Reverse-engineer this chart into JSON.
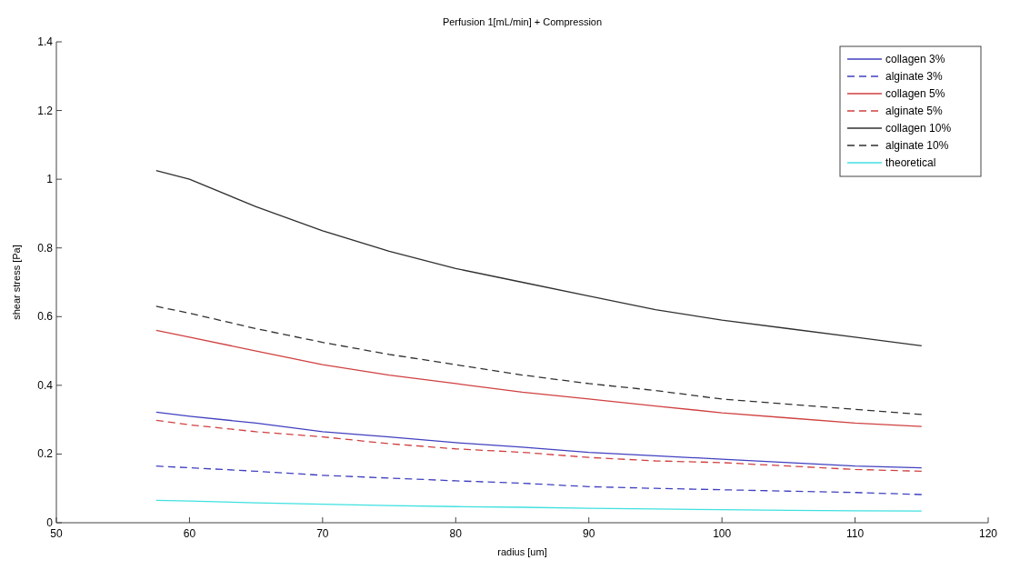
{
  "chart_data": {
    "type": "line",
    "title": "Perfusion 1[mL/min] + Compression",
    "xlabel": "radius [um]",
    "ylabel": "shear stress [Pa]",
    "x": [
      57.5,
      60,
      65,
      70,
      75,
      80,
      85,
      90,
      95,
      100,
      105,
      110,
      115
    ],
    "xlim": [
      50,
      120
    ],
    "xticks": [
      50,
      60,
      70,
      80,
      90,
      100,
      110,
      120
    ],
    "ylim": [
      0,
      1.4
    ],
    "yticks": [
      0,
      {
        "value": 0.2,
        "label": "0.2"
      },
      {
        "value": 0.4,
        "label": "0.4"
      },
      {
        "value": 0.6,
        "label": "0.6"
      },
      {
        "value": 0.8,
        "label": "0.8"
      },
      1,
      {
        "value": 1.2,
        "label": "1.2"
      },
      {
        "value": 1.4,
        "label": "1.4"
      }
    ],
    "grid": false,
    "legend": "top right",
    "marker": "none",
    "series": [
      {
        "name": "collagen 3%",
        "color": "#4040c0",
        "line_style": "solid",
        "values": [
          0.322,
          0.31,
          0.29,
          0.265,
          0.25,
          0.233,
          0.22,
          0.205,
          0.195,
          0.185,
          0.175,
          0.165,
          0.16
        ]
      },
      {
        "name": "alginate 3%",
        "color": "#4040c0",
        "line_style": "dashed",
        "values": [
          0.165,
          0.16,
          0.15,
          0.138,
          0.13,
          0.122,
          0.115,
          0.105,
          0.1,
          0.096,
          0.092,
          0.088,
          0.082
        ]
      },
      {
        "name": "collagen 5%",
        "color": "#d04040",
        "line_style": "solid",
        "values": [
          0.56,
          0.54,
          0.5,
          0.46,
          0.43,
          0.405,
          0.38,
          0.36,
          0.34,
          0.32,
          0.305,
          0.29,
          0.28
        ]
      },
      {
        "name": "alginate 5%",
        "color": "#d04040",
        "line_style": "dashed",
        "values": [
          0.298,
          0.285,
          0.265,
          0.25,
          0.23,
          0.215,
          0.205,
          0.19,
          0.18,
          0.175,
          0.165,
          0.155,
          0.15
        ]
      },
      {
        "name": "collagen 10%",
        "color": "#303030",
        "line_style": "solid",
        "values": [
          1.025,
          1.0,
          0.92,
          0.85,
          0.79,
          0.74,
          0.7,
          0.66,
          0.62,
          0.59,
          0.565,
          0.54,
          0.515
        ]
      },
      {
        "name": "alginate 10%",
        "color": "#303030",
        "line_style": "dashed",
        "values": [
          0.63,
          0.61,
          0.565,
          0.525,
          0.49,
          0.46,
          0.43,
          0.405,
          0.385,
          0.36,
          0.345,
          0.33,
          0.315
        ]
      },
      {
        "name": "theoretical",
        "color": "#40e0e0",
        "line_style": "solid",
        "values": [
          0.065,
          0.063,
          0.058,
          0.054,
          0.05,
          0.047,
          0.045,
          0.042,
          0.04,
          0.038,
          0.036,
          0.035,
          0.034
        ]
      }
    ]
  }
}
